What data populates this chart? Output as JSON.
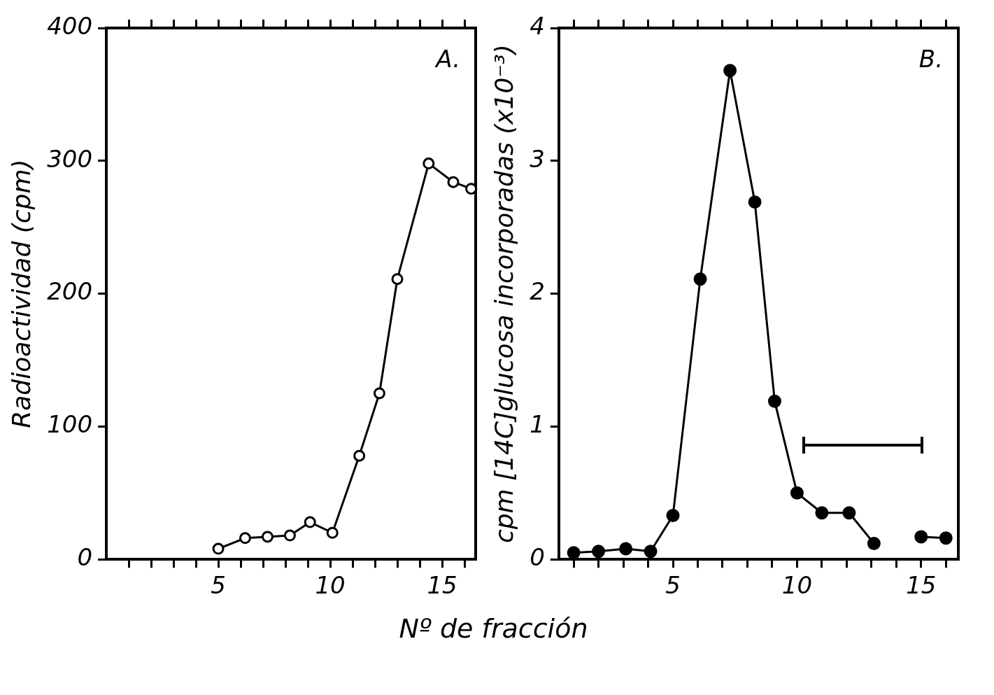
{
  "chart_data": [
    {
      "type": "line",
      "ylabel": "Radioactividad (cpm)",
      "xlabel": "Nº de fracción",
      "annotations": [
        "A."
      ],
      "marker": "circle",
      "line_style": "solid",
      "grid": false,
      "legend": false,
      "xlim": [
        0,
        16.5
      ],
      "xticks": [
        {
          "value": 1,
          "label": null
        },
        {
          "value": 2,
          "label": null
        },
        {
          "value": 3,
          "label": null
        },
        {
          "value": 4,
          "label": null
        },
        5,
        {
          "value": 6,
          "label": null
        },
        {
          "value": 7,
          "label": null
        },
        {
          "value": 8,
          "label": null
        },
        {
          "value": 9,
          "label": null
        },
        10,
        {
          "value": 11,
          "label": null
        },
        {
          "value": 12,
          "label": null
        },
        {
          "value": 13,
          "label": null
        },
        {
          "value": 14,
          "label": null
        },
        15,
        {
          "value": 16,
          "label": null
        }
      ],
      "ylim": [
        0,
        400
      ],
      "yticks": [
        0,
        100,
        200,
        300,
        400
      ],
      "series": [
        {
          "color": "#000000",
          "x": [
            5,
            6.2,
            7.2,
            8.2,
            9.1,
            10.1,
            11.3,
            12.2,
            13,
            14.4,
            15.5,
            16.3
          ],
          "values": [
            8,
            16,
            17,
            18,
            28,
            20,
            78,
            125,
            211,
            298,
            284,
            279
          ]
        }
      ]
    },
    {
      "type": "line",
      "ylabel": "cpm [14C]glucosa incorporadas (x10⁻³)",
      "annotations": [
        "B."
      ],
      "marker": "circle",
      "line_style": "solid",
      "grid": false,
      "legend": false,
      "xlim": [
        0.4,
        16.5
      ],
      "xticks": [
        {
          "value": 1,
          "label": null
        },
        {
          "value": 2,
          "label": null
        },
        {
          "value": 3,
          "label": null
        },
        {
          "value": 4,
          "label": null
        },
        5,
        {
          "value": 6,
          "label": null
        },
        {
          "value": 7,
          "label": null
        },
        {
          "value": 8,
          "label": null
        },
        {
          "value": 9,
          "label": null
        },
        10,
        {
          "value": 11,
          "label": null
        },
        {
          "value": 12,
          "label": null
        },
        {
          "value": 13,
          "label": null
        },
        {
          "value": 14,
          "label": null
        },
        15,
        {
          "value": 16,
          "label": null
        }
      ],
      "ylim": [
        0,
        4
      ],
      "yticks": [
        0,
        1,
        2,
        3,
        4
      ],
      "series": [
        {
          "color": "#000000",
          "x": [
            1,
            2,
            3.1,
            4.1,
            5,
            6.1,
            7.3,
            8.3,
            9.1,
            10,
            11,
            12.1,
            13.1,
            14,
            15,
            16
          ],
          "values": [
            0.05,
            0.06,
            0.08,
            0.06,
            0.33,
            2.11,
            3.68,
            2.69,
            1.19,
            0.5,
            0.35,
            0.35,
            0.12,
            null,
            0.17,
            0.16
          ]
        }
      ]
    }
  ]
}
